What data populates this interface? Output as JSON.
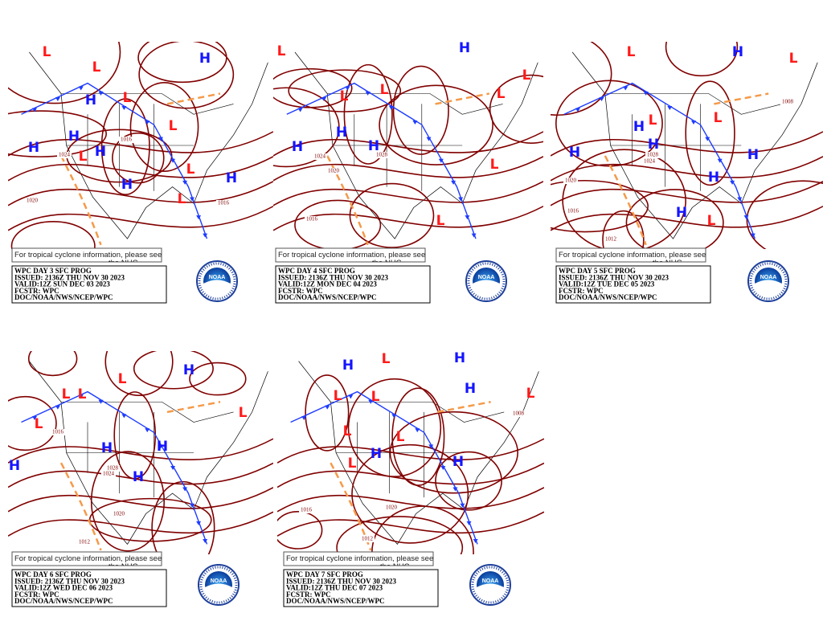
{
  "panels": [
    {
      "notice": "For tropical cyclone information, please see",
      "notice2": "the NHC",
      "title": "WPC DAY 3 SFC PROG",
      "issued": "ISSUED: 2136Z THU NOV 30 2023",
      "valid": "VALID:12Z SUN DEC 03 2023",
      "fcstr": "FCSTR: WPC",
      "office": "DOC/NOAA/NWS/NCEP/WPC",
      "logo": "NOAA",
      "centers": [
        "H",
        "H",
        "H",
        "H",
        "H",
        "H",
        "H",
        "L",
        "L",
        "L",
        "L",
        "L",
        "L",
        "L"
      ],
      "isobars": [
        1020,
        1016,
        1024,
        1016
      ]
    },
    {
      "notice": "For tropical cyclone information, please see",
      "notice2": "the NHC",
      "title": "WPC DAY 4 SFC PROG",
      "issued": "ISSUED: 2136Z THU NOV 30 2023",
      "valid": "VALID:12Z MON DEC 04 2023",
      "fcstr": "FCSTR: WPC",
      "office": "DOC/NOAA/NWS/NCEP/WPC",
      "logo": "NOAA",
      "centers": [
        "H",
        "H",
        "H",
        "H",
        "L",
        "L",
        "L",
        "L",
        "L",
        "L",
        "L"
      ],
      "isobars": [
        1024,
        1020,
        1016,
        1028
      ]
    },
    {
      "notice": "For tropical cyclone information, please see",
      "notice2": "the NHC",
      "title": "WPC DAY 5 SFC PROG",
      "issued": "ISSUED: 2136Z THU NOV 30 2023",
      "valid": "VALID:12Z TUE DEC 05 2023",
      "fcstr": "FCSTR: WPC",
      "office": "DOC/NOAA/NWS/NCEP/WPC",
      "logo": "NOAA",
      "centers": [
        "H",
        "H",
        "H",
        "H",
        "H",
        "H",
        "H",
        "L",
        "L",
        "L",
        "L",
        "L"
      ],
      "isobars": [
        1020,
        1016,
        1012,
        1028,
        1024,
        1008
      ]
    },
    {
      "notice": "For tropical cyclone information, please see",
      "notice2": "the NHC",
      "title": "WPC DAY 6 SFC PROG",
      "issued": "ISSUED: 2136Z THU NOV 30 2023",
      "valid": "VALID:12Z WED DEC 06 2023",
      "fcstr": "FCSTR: WPC",
      "office": "DOC/NOAA/NWS/NCEP/WPC",
      "logo": "NOAA",
      "centers": [
        "H",
        "H",
        "H",
        "H",
        "H",
        "L",
        "L",
        "L",
        "L",
        "L"
      ],
      "isobars": [
        1020,
        1012,
        1028,
        1024,
        1016
      ]
    },
    {
      "notice": "For tropical cyclone information, please see",
      "notice2": "the NHC",
      "title": "WPC DAY 7 SFC PROG",
      "issued": "ISSUED: 2136Z THU NOV 30 2023",
      "valid": "VALID:12Z THU DEC 07 2023",
      "fcstr": "FCSTR: WPC",
      "office": "DOC/NOAA/NWS/NCEP/WPC",
      "logo": "NOAA",
      "centers": [
        "H",
        "H",
        "H",
        "H",
        "H",
        "L",
        "L",
        "L",
        "L",
        "L",
        "L",
        "L"
      ],
      "isobars": [
        1020,
        1016,
        1012,
        1008
      ]
    }
  ]
}
